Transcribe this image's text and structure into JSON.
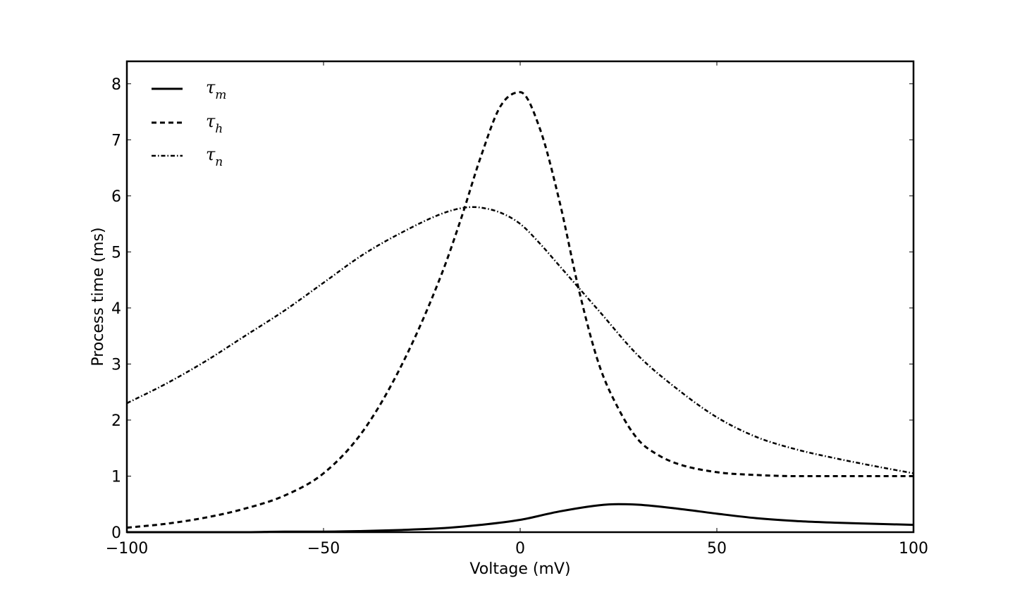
{
  "chart_data": {
    "type": "line",
    "xlabel": "Voltage (mV)",
    "ylabel": "Process time (ms)",
    "xlim": [
      -100,
      100
    ],
    "ylim": [
      0,
      8.4
    ],
    "xticks": [
      -100,
      -50,
      0,
      50,
      100
    ],
    "xtick_labels": [
      "−100",
      "−50",
      "0",
      "50",
      "100"
    ],
    "yticks": [
      0,
      1,
      2,
      3,
      4,
      5,
      6,
      7,
      8
    ],
    "ytick_labels": [
      "0",
      "1",
      "2",
      "3",
      "4",
      "5",
      "6",
      "7",
      "8"
    ],
    "grid": false,
    "legend_position": "top-left",
    "series": [
      {
        "name": "τm",
        "symbol": "τ",
        "subscript": "m",
        "style": "solid",
        "x": [
          -100,
          -90,
          -80,
          -70,
          -60,
          -50,
          -40,
          -30,
          -20,
          -10,
          0,
          10,
          20,
          25,
          30,
          40,
          50,
          60,
          70,
          80,
          90,
          100
        ],
        "y": [
          0.0,
          0.0,
          0.0,
          0.0,
          0.01,
          0.01,
          0.02,
          0.04,
          0.07,
          0.13,
          0.22,
          0.37,
          0.48,
          0.5,
          0.49,
          0.42,
          0.33,
          0.25,
          0.2,
          0.17,
          0.15,
          0.13
        ]
      },
      {
        "name": "τh",
        "symbol": "τ",
        "subscript": "h",
        "style": "dashed",
        "x": [
          -100,
          -90,
          -80,
          -70,
          -60,
          -50,
          -40,
          -30,
          -20,
          -15,
          -10,
          -5,
          0,
          5,
          10,
          15,
          20,
          25,
          30,
          35,
          40,
          50,
          60,
          70,
          80,
          90,
          100
        ],
        "y": [
          0.08,
          0.15,
          0.26,
          0.42,
          0.65,
          1.05,
          1.8,
          3.0,
          4.6,
          5.6,
          6.7,
          7.6,
          7.85,
          7.2,
          5.9,
          4.3,
          3.0,
          2.2,
          1.65,
          1.38,
          1.22,
          1.07,
          1.02,
          1.0,
          1.0,
          1.0,
          1.0
        ]
      },
      {
        "name": "τn",
        "symbol": "τ",
        "subscript": "n",
        "style": "dashdot",
        "x": [
          -100,
          -90,
          -80,
          -70,
          -60,
          -50,
          -40,
          -30,
          -20,
          -15,
          -12,
          -10,
          -5,
          0,
          5,
          10,
          20,
          30,
          40,
          50,
          60,
          70,
          80,
          90,
          100
        ],
        "y": [
          2.3,
          2.65,
          3.05,
          3.5,
          3.95,
          4.45,
          4.95,
          5.35,
          5.68,
          5.78,
          5.8,
          5.79,
          5.7,
          5.5,
          5.15,
          4.75,
          3.95,
          3.15,
          2.55,
          2.05,
          1.7,
          1.48,
          1.32,
          1.18,
          1.05
        ]
      }
    ]
  }
}
